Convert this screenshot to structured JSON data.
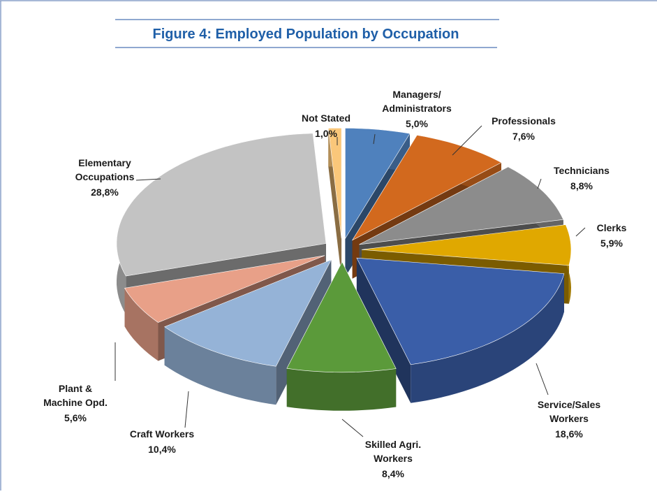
{
  "chart_data": {
    "type": "pie3d",
    "title": "Figure 4: Employed Population by Occupation",
    "categories": [
      "Managers/\nAdministrators",
      "Professionals",
      "Technicians",
      "Clerks",
      "Service/Sales\nWorkers",
      "Skilled Agri.\nWorkers",
      "Craft Workers",
      "Plant &\nMachine Opd.",
      "Elementary\nOccupations",
      "Not Stated"
    ],
    "values": [
      5.0,
      7.6,
      8.8,
      5.9,
      18.6,
      8.4,
      10.4,
      5.6,
      28.8,
      1.0
    ],
    "value_labels": [
      "5,0%",
      "7,6%",
      "8,8%",
      "5,9%",
      "18,6%",
      "8,4%",
      "10,4%",
      "5,6%",
      "28,8%",
      "1,0%"
    ],
    "colors": [
      "#4f81bd",
      "#d2691e",
      "#8c8c8c",
      "#e0a800",
      "#3a5ea8",
      "#5b9a3a",
      "#95b3d7",
      "#e8a088",
      "#c3c3c3",
      "#fac77a"
    ]
  }
}
